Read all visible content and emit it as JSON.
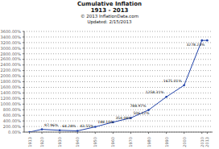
{
  "chart_data": {
    "type": "line",
    "title": [
      "Cumulative Inflation",
      "1913 - 2013"
    ],
    "subtitle": [
      "© 2013 InflationData.com",
      "Updated: 2/15/2013"
    ],
    "x": [
      1913,
      1920,
      1930,
      1940,
      1950,
      1960,
      1970,
      1980,
      1990,
      2000,
      2010,
      2013
    ],
    "values": [
      0.0,
      97.96,
      64.28,
      43.55,
      188.1,
      354.08,
      506.12,
      788.97,
      1258.31,
      1675.01,
      3278.23,
      3278.23
    ],
    "color": "#2244aa",
    "marker": "circle",
    "grid": true,
    "xlim": [
      1910,
      2016
    ],
    "xticks": [
      1913,
      1920,
      1930,
      1940,
      1950,
      1960,
      1970,
      1980,
      1990,
      2000,
      2010,
      2013
    ],
    "ylim": [
      0,
      3600
    ],
    "yticks": [
      {
        "value": 0,
        "label": "0.00%"
      },
      {
        "value": 200,
        "label": "200.00%"
      },
      {
        "value": 400,
        "label": "400.00%"
      },
      {
        "value": 600,
        "label": "600.00%"
      },
      {
        "value": 800,
        "label": "800.00%"
      },
      {
        "value": 1000,
        "label": "1000.00%"
      },
      {
        "value": 1200,
        "label": "1200.00%"
      },
      {
        "value": 1400,
        "label": "1400.00%"
      },
      {
        "value": 1600,
        "label": "1600.00%"
      },
      {
        "value": 1800,
        "label": "1800.00%"
      },
      {
        "value": 2000,
        "label": "2000.00%"
      },
      {
        "value": 2200,
        "label": "2200.00%"
      },
      {
        "value": 2400,
        "label": "2400.00%"
      },
      {
        "value": 2600,
        "label": "2600.00%"
      },
      {
        "value": 2800,
        "label": "2800.00%"
      },
      {
        "value": 3000,
        "label": "3000.00%"
      },
      {
        "value": 3200,
        "label": "3200.00%"
      },
      {
        "value": 3400,
        "label": "3400.00%"
      },
      {
        "value": 3600,
        "label": "3600.00%"
      }
    ],
    "annotations": [
      {
        "x": 1920,
        "y": 97.96,
        "text": "97.96%"
      },
      {
        "x": 1930,
        "y": 64.28,
        "text": "64.28%"
      },
      {
        "x": 1940,
        "y": 43.55,
        "text": "43.55%"
      },
      {
        "x": 1950,
        "y": 188.1,
        "text": "188.10%"
      },
      {
        "x": 1960,
        "y": 354.08,
        "text": "354.08%"
      },
      {
        "x": 1970,
        "y": 506.12,
        "text": "506.12%"
      },
      {
        "x": 1980,
        "y": 788.97,
        "text": "788.97%"
      },
      {
        "x": 1990,
        "y": 1258.31,
        "text": "1258.31%"
      },
      {
        "x": 2000,
        "y": 1675.01,
        "text": "1675.01%"
      },
      {
        "x": 2013,
        "y": 3278.23,
        "text": "3278.23%"
      }
    ]
  }
}
